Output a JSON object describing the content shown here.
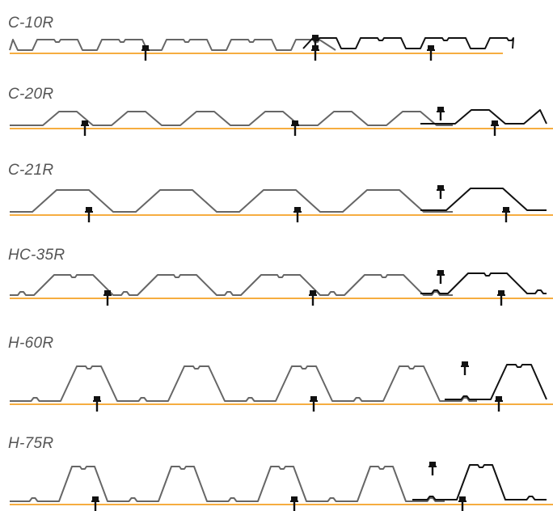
{
  "colors": {
    "support_line": "#f39200",
    "sheet_grey": "#666666",
    "sheet_black": "#111111",
    "fastener": "#111111"
  },
  "profiles": [
    {
      "name": "C-10R"
    },
    {
      "name": "C-20R"
    },
    {
      "name": "C-21R"
    },
    {
      "name": "HC-35R"
    },
    {
      "name": "H-60R"
    },
    {
      "name": "H-75R"
    }
  ]
}
